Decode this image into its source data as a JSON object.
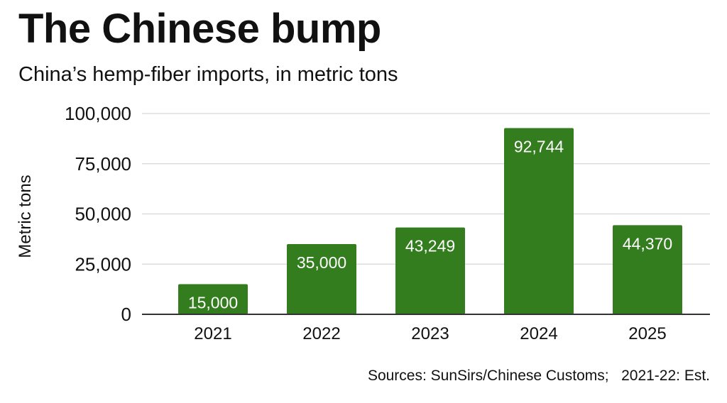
{
  "title": "The Chinese bump",
  "subtitle": "China’s hemp-fiber imports, in metric tons",
  "source": "Sources: SunSirs/Chinese Customs;   2021-22: Est.",
  "colors": {
    "bar": "#347d1f",
    "grid": "#d6d6d6",
    "axis": "#333333",
    "label": "#ffffff"
  },
  "chart_data": {
    "type": "bar",
    "title": "The Chinese bump",
    "subtitle": "China’s hemp-fiber imports, in metric tons",
    "xlabel": "",
    "ylabel": "Metric tons",
    "categories": [
      "2021",
      "2022",
      "2023",
      "2024",
      "2025"
    ],
    "values": [
      15000,
      35000,
      43249,
      92744,
      44370
    ],
    "data_labels": [
      "15,000",
      "35,000",
      "43,249",
      "92,744",
      "44,370"
    ],
    "ylim": [
      0,
      100000
    ],
    "yticks": [
      0,
      25000,
      50000,
      75000,
      100000
    ],
    "ytick_labels": [
      "0",
      "25,000",
      "50,000",
      "75,000",
      "100,000"
    ],
    "grid": true,
    "legend": "none"
  }
}
